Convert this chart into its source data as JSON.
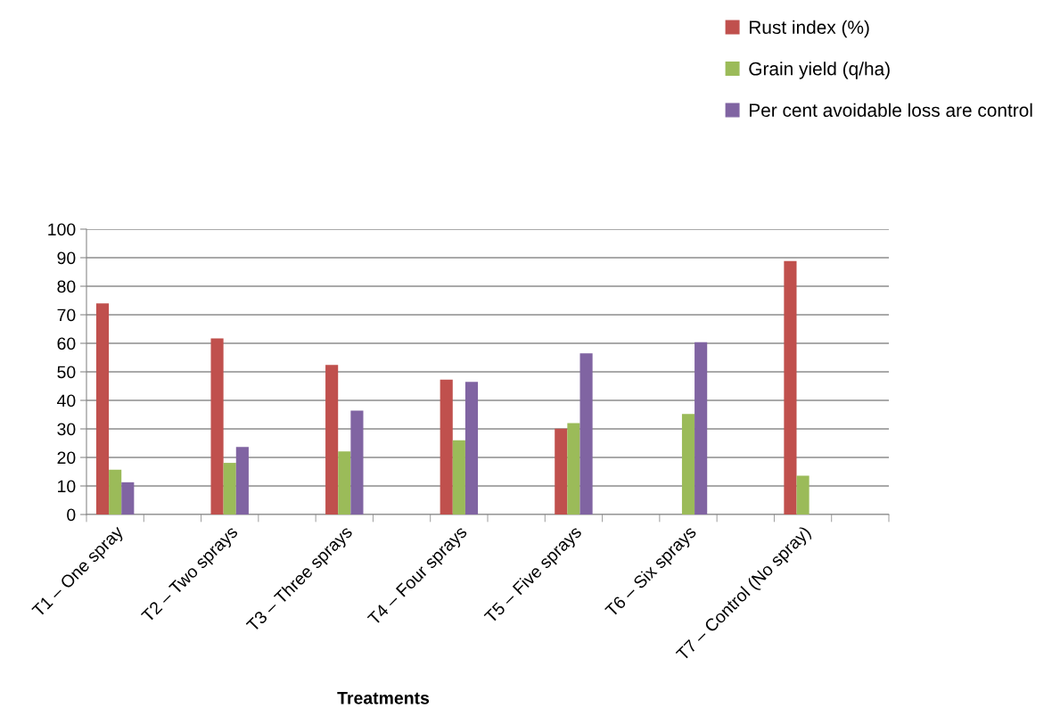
{
  "chart_data": {
    "type": "bar",
    "xlabel": "Treatments",
    "categories": [
      "T1 – One spray",
      null,
      "T2 – Two sprays",
      null,
      "T3 – Three sprays",
      null,
      "T4 – Four sprays",
      null,
      "T5 – Five sprays",
      null,
      "T6 – Six sprays",
      null,
      "T7 – Control (No spray)",
      null
    ],
    "series": [
      {
        "name": "Rust index (%)",
        "color": "#c0504d",
        "values": [
          74.0,
          null,
          61.7,
          null,
          52.4,
          null,
          47.3,
          null,
          30.1,
          null,
          null,
          null,
          88.8,
          null
        ]
      },
      {
        "name": "Grain yield (q/ha)",
        "color": "#9bbb59",
        "values": [
          15.7,
          null,
          18.1,
          null,
          22.1,
          null,
          26.0,
          null,
          32.0,
          null,
          35.2,
          null,
          13.6,
          null
        ]
      },
      {
        "name": "Per cent avoidable loss are control",
        "color": "#8064a2",
        "values": [
          11.3,
          null,
          23.7,
          null,
          36.4,
          null,
          46.5,
          null,
          56.5,
          null,
          60.4,
          null,
          null,
          null
        ]
      }
    ],
    "ylim": [
      0,
      100
    ],
    "yticks": [
      0,
      10,
      20,
      30,
      40,
      50,
      60,
      70,
      80,
      90,
      100
    ],
    "grid": "y",
    "legend": "top right"
  }
}
